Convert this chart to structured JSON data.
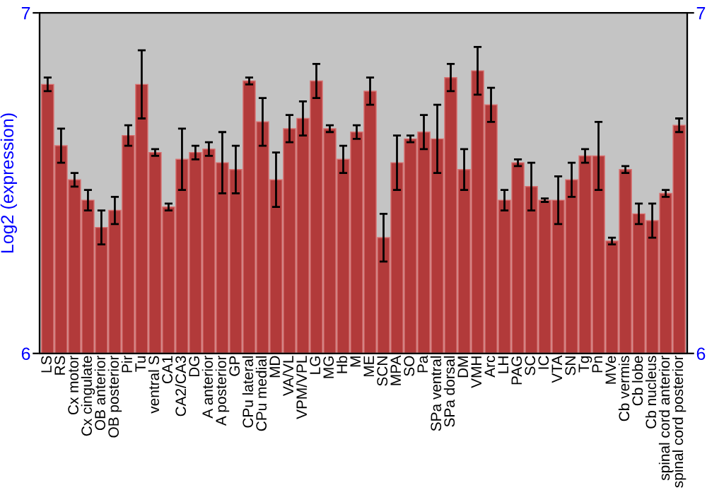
{
  "chart_data": {
    "type": "bar",
    "ylabel": "Log2 (expression)",
    "categories": [
      "LS",
      "RS",
      "Cx motor",
      "Cx cingulate",
      "OB anterior",
      "OB posterior",
      "Pir",
      "Tu",
      "ventral S",
      "CA1",
      "CA2/CA3",
      "DG",
      "A anterior",
      "A posterior",
      "GP",
      "CPu lateral",
      "CPu medial",
      "MD",
      "VA/VL",
      "VPM/VPL",
      "LG",
      "MG",
      "Hb",
      "M",
      "ME",
      "SCN",
      "MPA",
      "SO",
      "Pa",
      "SPa ventral",
      "SPa dorsal",
      "DM",
      "VMH",
      "Arc",
      "LH",
      "PAG",
      "SC",
      "IC",
      "VTA",
      "SN",
      "Tg",
      "Pn",
      "MVe",
      "Cb vermis",
      "Cb lobe",
      "Cb nucleus",
      "spinal cord anterior",
      "spinal cord posterior"
    ],
    "values": [
      6.79,
      6.61,
      6.51,
      6.45,
      6.37,
      6.42,
      6.64,
      6.79,
      6.59,
      6.43,
      6.57,
      6.59,
      6.6,
      6.56,
      6.54,
      6.8,
      6.68,
      6.51,
      6.66,
      6.69,
      6.8,
      6.66,
      6.57,
      6.65,
      6.77,
      6.34,
      6.56,
      6.63,
      6.65,
      6.63,
      6.81,
      6.54,
      6.83,
      6.73,
      6.45,
      6.56,
      6.49,
      6.45,
      6.45,
      6.51,
      6.58,
      6.58,
      6.33,
      6.54,
      6.41,
      6.39,
      6.47,
      6.67
    ],
    "errors": [
      0.02,
      0.05,
      0.02,
      0.03,
      0.05,
      0.04,
      0.03,
      0.1,
      0.01,
      0.01,
      0.09,
      0.02,
      0.02,
      0.09,
      0.07,
      0.01,
      0.07,
      0.08,
      0.04,
      0.05,
      0.05,
      0.01,
      0.04,
      0.02,
      0.04,
      0.07,
      0.08,
      0.01,
      0.05,
      0.1,
      0.04,
      0.06,
      0.07,
      0.05,
      0.03,
      0.01,
      0.07,
      0.005,
      0.07,
      0.05,
      0.02,
      0.1,
      0.01,
      0.01,
      0.03,
      0.05,
      0.01,
      0.02
    ],
    "color": "#b23a3a",
    "ylim": [
      6,
      7
    ],
    "yticks": [
      6,
      7
    ],
    "y2lim": [
      6,
      7
    ],
    "y2ticks": [
      6,
      7
    ],
    "grid": false
  }
}
